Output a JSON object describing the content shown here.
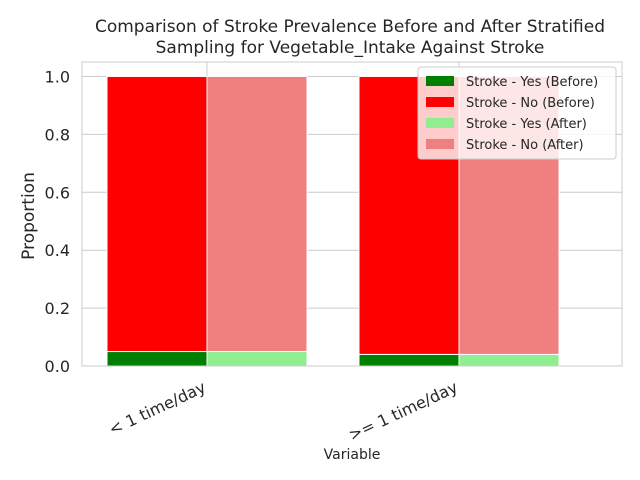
{
  "chart_data": {
    "type": "bar",
    "title_lines": [
      "Comparison of Stroke Prevalence Before and After Stratified",
      "Sampling for Vegetable_Intake Against Stroke"
    ],
    "xlabel": "Variable",
    "ylabel": "Proportion",
    "ylim": [
      0,
      1.05
    ],
    "yticks": [
      "0.0",
      "0.2",
      "0.4",
      "0.6",
      "0.8",
      "1.0"
    ],
    "ytick_values": [
      0,
      0.2,
      0.4,
      0.6,
      0.8,
      1.0
    ],
    "categories": [
      "< 1 time/day",
      ">= 1 time/day"
    ],
    "grid": true,
    "legend_position": "top-right",
    "series": [
      {
        "name": "Stroke - Yes (Before)",
        "group": "before",
        "stack": "bottom",
        "color": "#008000",
        "values": [
          0.05,
          0.04
        ]
      },
      {
        "name": "Stroke - No (Before)",
        "group": "before",
        "stack": "top",
        "color": "#ff0000",
        "values": [
          0.95,
          0.96
        ]
      },
      {
        "name": "Stroke - Yes (After)",
        "group": "after",
        "stack": "bottom",
        "color": "#90ee90",
        "values": [
          0.05,
          0.04
        ]
      },
      {
        "name": "Stroke - No (After)",
        "group": "after",
        "stack": "top",
        "color": "#f08080",
        "values": [
          0.95,
          0.96
        ]
      }
    ]
  }
}
